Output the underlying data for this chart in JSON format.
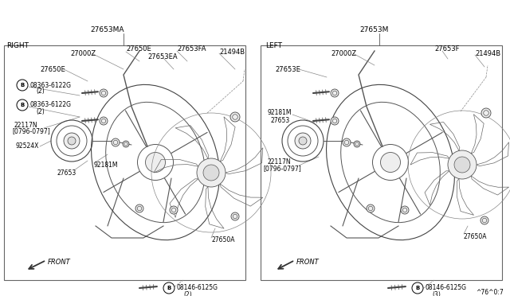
{
  "bg_color": "#ffffff",
  "text_color": "#000000",
  "line_color": "#555555",
  "diagram_number": "^76^0:7",
  "right_label": "RIGHT",
  "left_label": "LEFT",
  "right_part_top": "27653MA",
  "left_part_top": "27653M"
}
